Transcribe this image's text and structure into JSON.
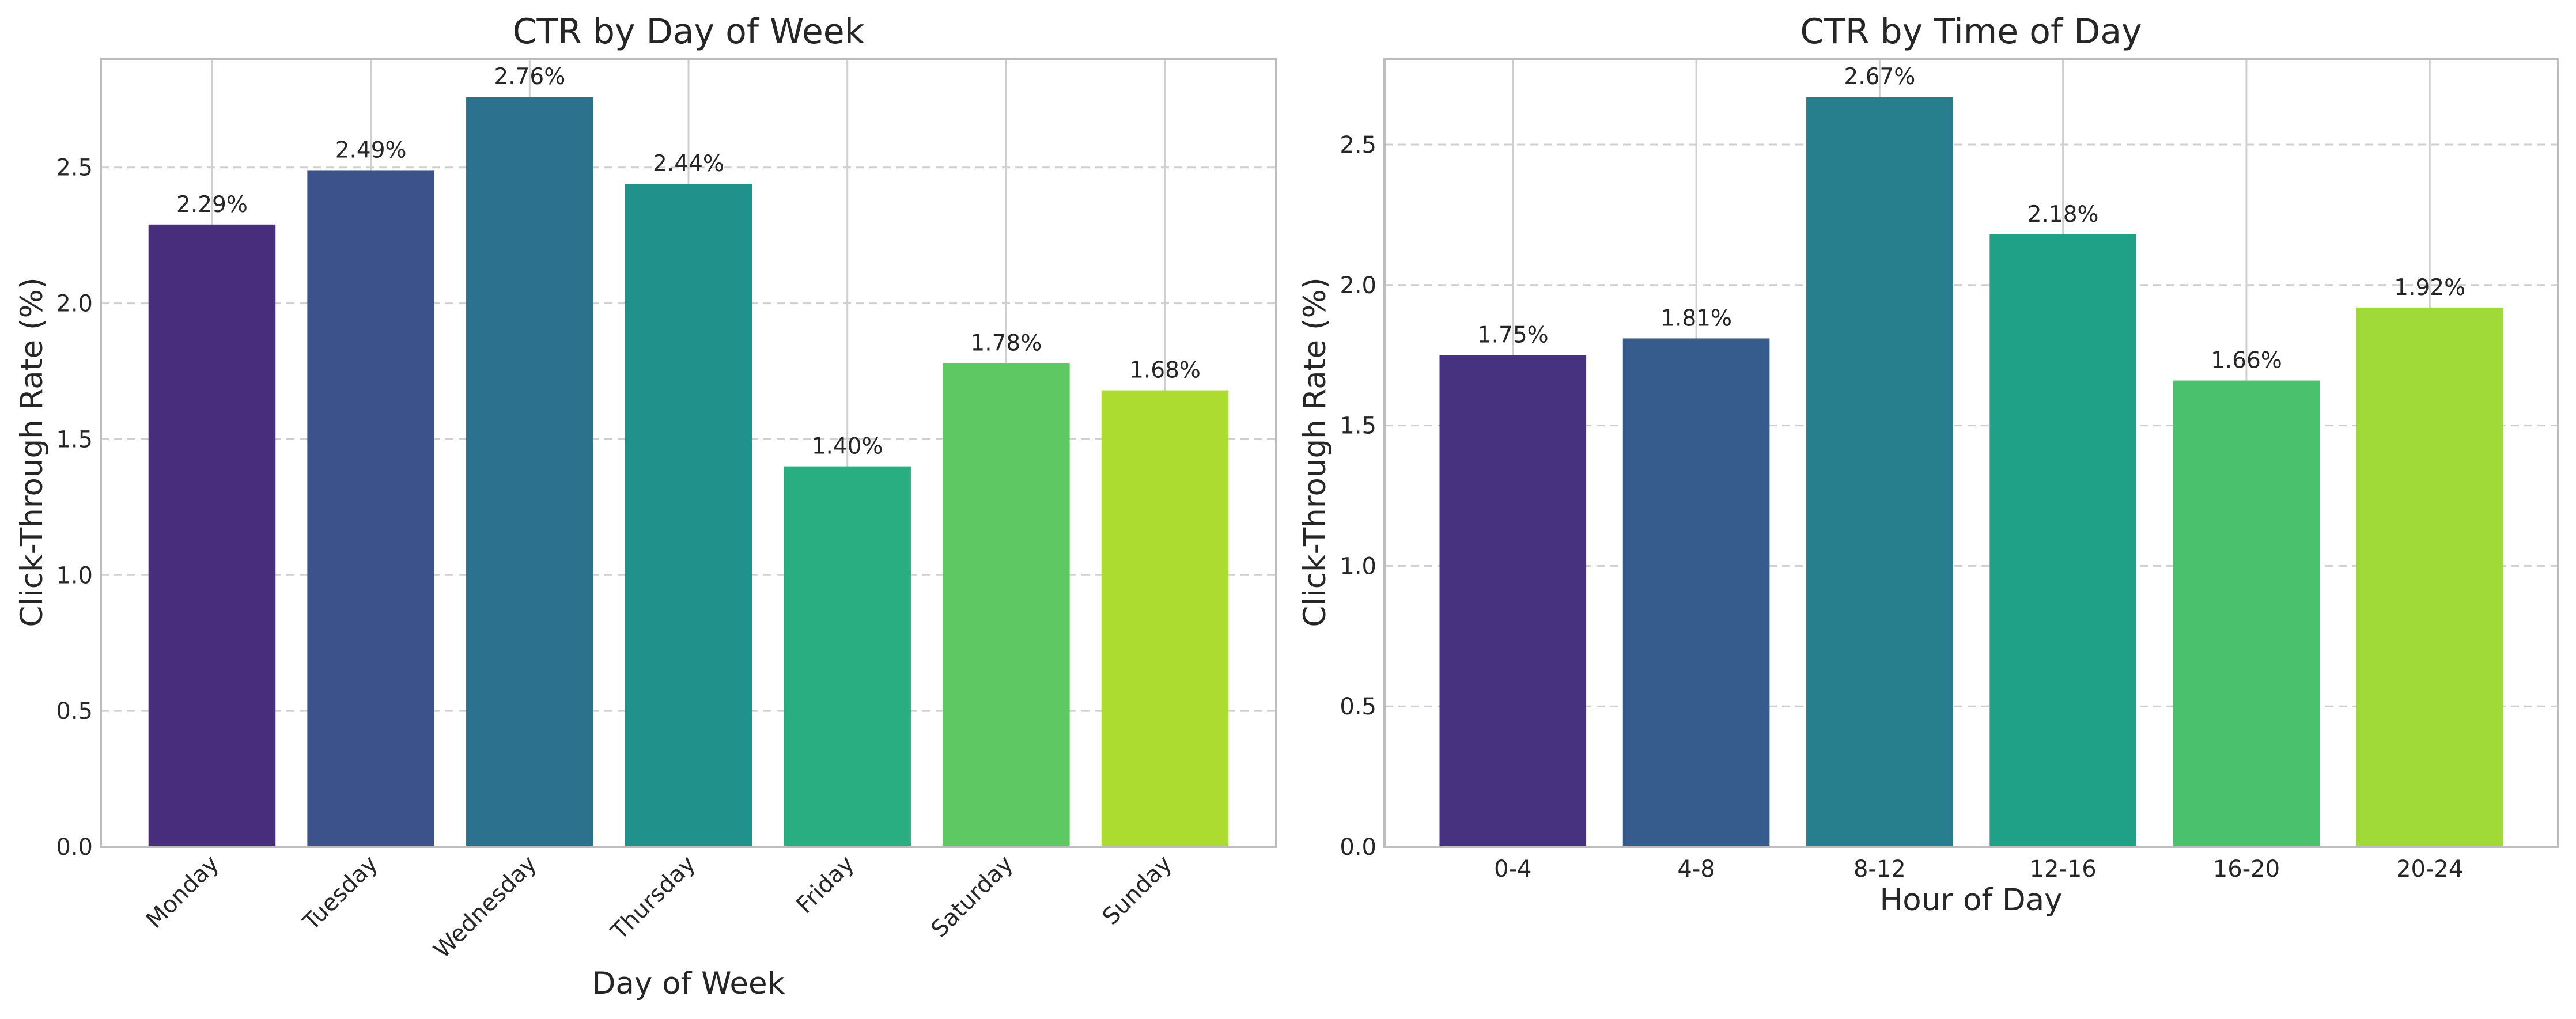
{
  "chart_data": [
    {
      "type": "bar",
      "title": "CTR by Day of Week",
      "xlabel": "Day of Week",
      "ylabel": "Click-Through Rate (%)",
      "categories": [
        "Monday",
        "Tuesday",
        "Wednesday",
        "Thursday",
        "Friday",
        "Saturday",
        "Sunday"
      ],
      "values": [
        2.29,
        2.49,
        2.76,
        2.44,
        1.4,
        1.78,
        1.68
      ],
      "value_labels": [
        "2.29%",
        "2.49%",
        "2.76%",
        "2.44%",
        "1.40%",
        "1.78%",
        "1.68%"
      ],
      "colors": [
        "#472d7b",
        "#3b528b",
        "#2c728e",
        "#21918c",
        "#28ae80",
        "#5ec962",
        "#addc30"
      ],
      "ylim": [
        0,
        2.898
      ],
      "yticks": [
        0.0,
        0.5,
        1.0,
        1.5,
        2.0,
        2.5
      ],
      "ytick_labels": [
        "0.0",
        "0.5",
        "1.0",
        "1.5",
        "2.0",
        "2.5"
      ],
      "xtick_rotation": 45,
      "grid": true
    },
    {
      "type": "bar",
      "title": "CTR by Time of Day",
      "xlabel": "Hour of Day",
      "ylabel": "Click-Through Rate (%)",
      "categories": [
        "0-4",
        "4-8",
        "8-12",
        "12-16",
        "16-20",
        "20-24"
      ],
      "values": [
        1.75,
        1.81,
        2.67,
        2.18,
        1.66,
        1.92
      ],
      "value_labels": [
        "1.75%",
        "1.81%",
        "2.67%",
        "2.18%",
        "1.66%",
        "1.92%"
      ],
      "colors": [
        "#46327e",
        "#365c8d",
        "#277f8e",
        "#1fa187",
        "#4ac16d",
        "#a0da39"
      ],
      "ylim": [
        0,
        2.8035
      ],
      "yticks": [
        0.0,
        0.5,
        1.0,
        1.5,
        2.0,
        2.5
      ],
      "ytick_labels": [
        "0.0",
        "0.5",
        "1.0",
        "1.5",
        "2.0",
        "2.5"
      ],
      "xtick_rotation": 0,
      "grid": true
    }
  ]
}
